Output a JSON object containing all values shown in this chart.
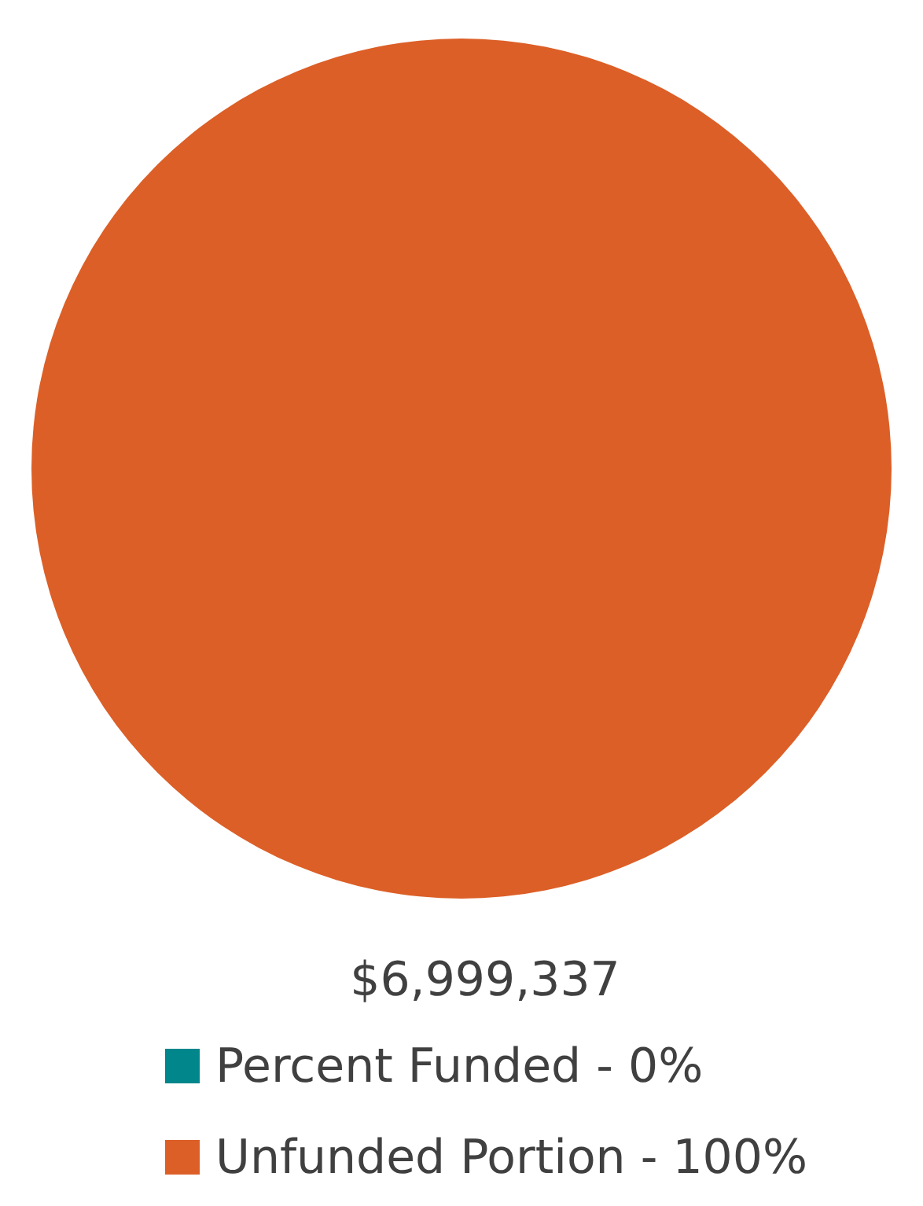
{
  "chart_data": {
    "type": "pie",
    "categories": [
      "Percent Funded - 0%",
      "Unfunded Portion - 100%"
    ],
    "values": [
      0,
      100
    ],
    "colors": [
      "#00868b",
      "#dc5f27"
    ],
    "annotations": [
      "$6,999,337"
    ],
    "legend": "bottom"
  }
}
